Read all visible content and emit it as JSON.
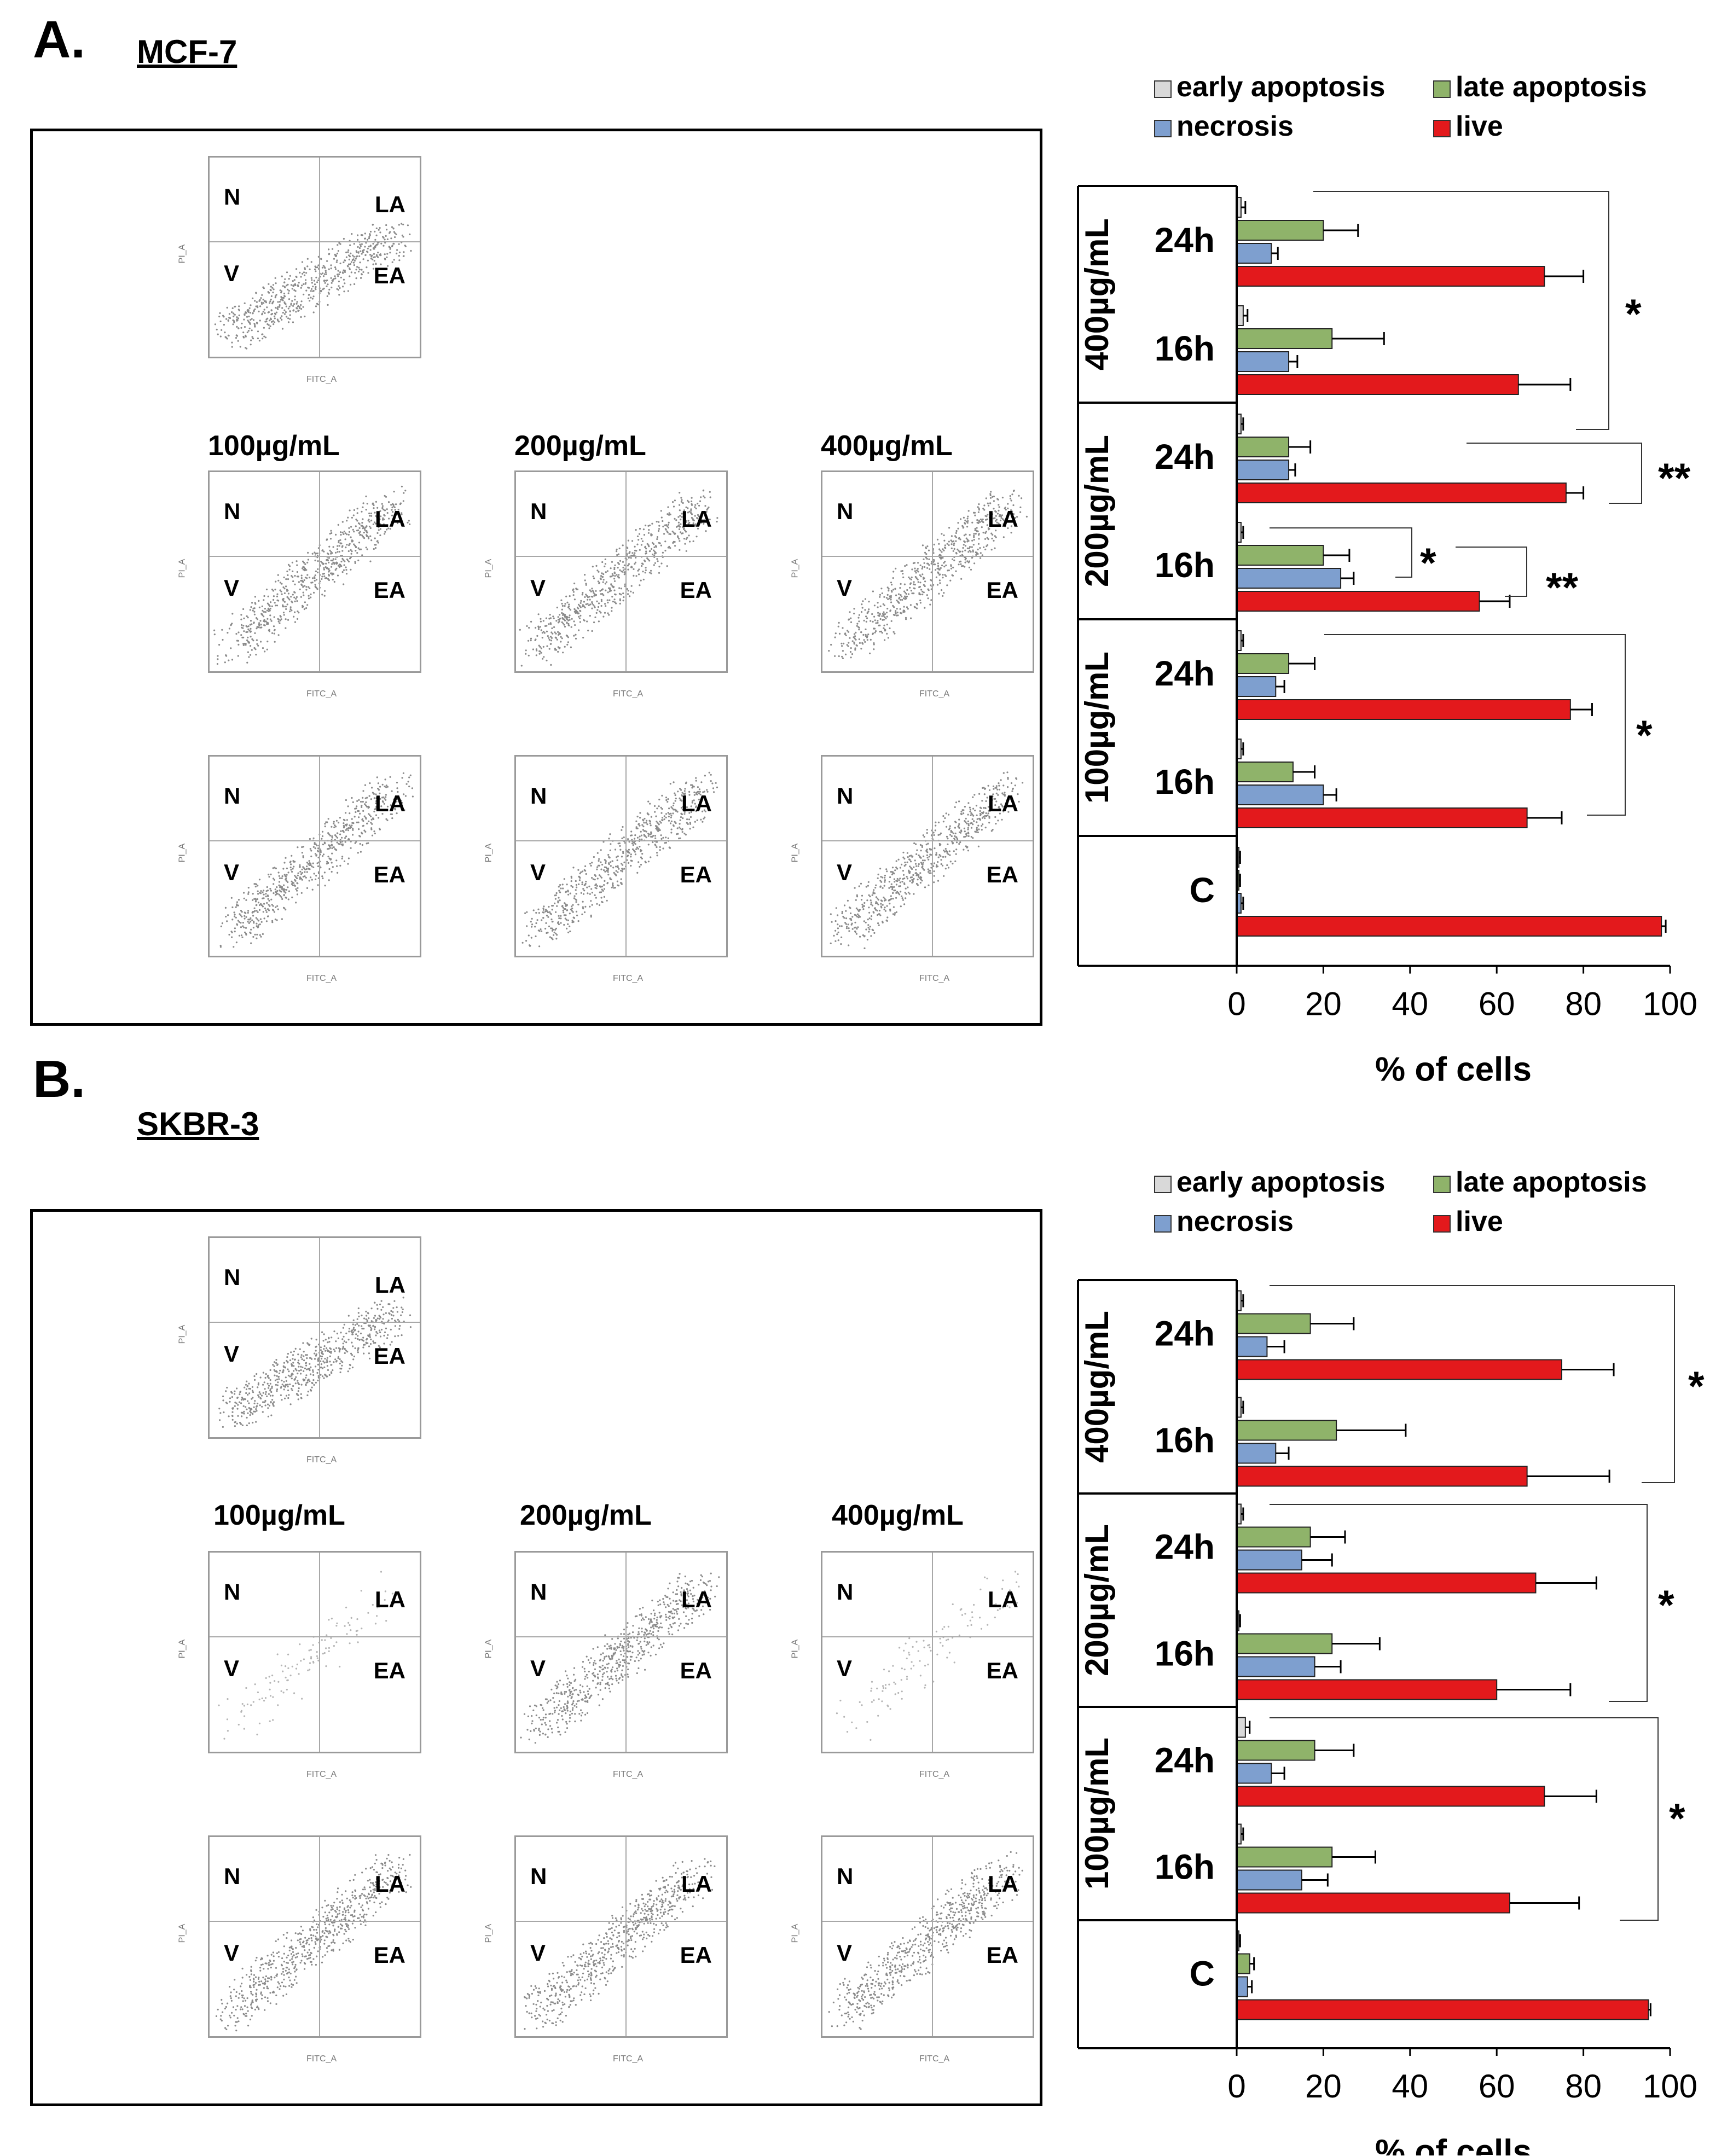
{
  "panels": [
    {
      "letter": "A.",
      "cell_line": "MCF-7",
      "flow": {
        "dose_labels": [
          "100µg/mL",
          "200µg/mL",
          "400µg/mL"
        ],
        "quadrants": {
          "n": "N",
          "la": "LA",
          "v": "V",
          "ea": "EA"
        },
        "axis_x": "FITC_A",
        "axis_y": "PI_A"
      },
      "legend": [
        "early apoptosis",
        "late apoptosis",
        "necrosis",
        "live"
      ]
    },
    {
      "letter": "B.",
      "cell_line": "SKBR-3",
      "flow": {
        "dose_labels": [
          "100µg/mL",
          "200µg/mL",
          "400µg/mL"
        ],
        "quadrants": {
          "n": "N",
          "la": "LA",
          "v": "V",
          "ea": "EA"
        },
        "axis_x": "FITC_A",
        "axis_y": "PI_A"
      },
      "legend": [
        "early apoptosis",
        "late apoptosis",
        "necrosis",
        "live"
      ]
    }
  ],
  "colors": {
    "early": "#d9d9d9",
    "late": "#8fb36a",
    "necrosis": "#7e9fcf",
    "live": "#e3191c"
  },
  "chart_data": [
    {
      "type": "bar",
      "orientation": "horizontal",
      "title": "MCF-7",
      "xlabel": "% of cells",
      "xlim": [
        0,
        100
      ],
      "xticks": [
        0,
        20,
        40,
        60,
        80,
        100
      ],
      "groups": [
        {
          "label": "400µg/mL",
          "times": [
            {
              "label": "24h",
              "early": 1,
              "late": 20,
              "necrosis": 8,
              "live": 71,
              "err": [
                1,
                8,
                1.5,
                9
              ]
            },
            {
              "label": "16h",
              "early": 1.5,
              "late": 22,
              "necrosis": 12,
              "live": 65,
              "err": [
                1,
                12,
                2,
                12
              ]
            }
          ]
        },
        {
          "label": "200µg/mL",
          "times": [
            {
              "label": "24h",
              "early": 1,
              "late": 12,
              "necrosis": 12,
              "live": 76,
              "err": [
                0.5,
                5,
                1.5,
                4
              ]
            },
            {
              "label": "16h",
              "early": 1,
              "late": 20,
              "necrosis": 24,
              "live": 56,
              "err": [
                0.5,
                6,
                3,
                7
              ]
            }
          ]
        },
        {
          "label": "100µg/mL",
          "times": [
            {
              "label": "24h",
              "early": 1,
              "late": 12,
              "necrosis": 9,
              "live": 77,
              "err": [
                0.5,
                6,
                2,
                5
              ]
            },
            {
              "label": "16h",
              "early": 1,
              "late": 13,
              "necrosis": 20,
              "live": 67,
              "err": [
                0.5,
                5,
                3,
                8
              ]
            }
          ]
        },
        {
          "label": "",
          "times": [
            {
              "label": "C",
              "early": 0.5,
              "late": 0.5,
              "necrosis": 1,
              "live": 98,
              "err": [
                0.3,
                0.3,
                0.5,
                1
              ]
            }
          ]
        }
      ],
      "legend": [
        "early apoptosis",
        "late apoptosis",
        "necrosis",
        "live"
      ],
      "annotations": [
        "*",
        "**",
        "*",
        "**",
        "*"
      ]
    },
    {
      "type": "bar",
      "orientation": "horizontal",
      "title": "SKBR-3",
      "xlabel": "% of cells",
      "xlim": [
        0,
        100
      ],
      "xticks": [
        0,
        20,
        40,
        60,
        80,
        100
      ],
      "groups": [
        {
          "label": "400µg/mL",
          "times": [
            {
              "label": "24h",
              "early": 1,
              "late": 17,
              "necrosis": 7,
              "live": 75,
              "err": [
                0.5,
                10,
                4,
                12
              ]
            },
            {
              "label": "16h",
              "early": 1,
              "late": 23,
              "necrosis": 9,
              "live": 67,
              "err": [
                0.5,
                16,
                3,
                19
              ]
            }
          ]
        },
        {
          "label": "200µg/mL",
          "times": [
            {
              "label": "24h",
              "early": 1,
              "late": 17,
              "necrosis": 15,
              "live": 69,
              "err": [
                0.5,
                8,
                7,
                14
              ]
            },
            {
              "label": "16h",
              "early": 0.5,
              "late": 22,
              "necrosis": 18,
              "live": 60,
              "err": [
                0.3,
                11,
                6,
                17
              ]
            }
          ]
        },
        {
          "label": "100µg/mL",
          "times": [
            {
              "label": "24h",
              "early": 2,
              "late": 18,
              "necrosis": 8,
              "live": 71,
              "err": [
                1,
                9,
                3,
                12
              ]
            },
            {
              "label": "16h",
              "early": 1,
              "late": 22,
              "necrosis": 15,
              "live": 63,
              "err": [
                0.5,
                10,
                6,
                16
              ]
            }
          ]
        },
        {
          "label": "",
          "times": [
            {
              "label": "C",
              "early": 0.5,
              "late": 3,
              "necrosis": 2.5,
              "live": 95,
              "err": [
                0.3,
                1,
                1,
                0.5
              ]
            }
          ]
        }
      ],
      "legend": [
        "early apoptosis",
        "late apoptosis",
        "necrosis",
        "live"
      ],
      "annotations": [
        "*",
        "*",
        "*"
      ]
    }
  ]
}
